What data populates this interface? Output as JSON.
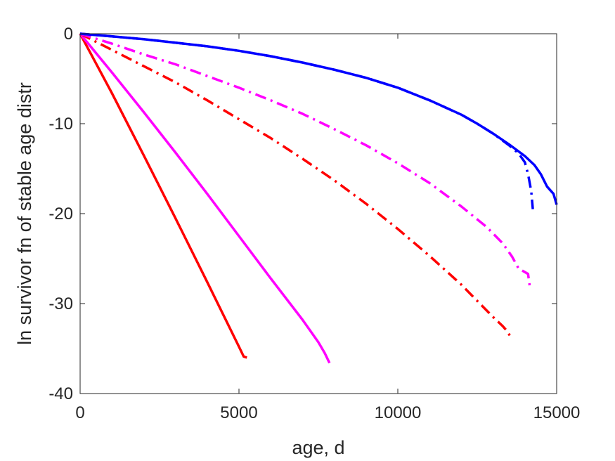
{
  "chart_data": {
    "type": "line",
    "title": "",
    "xlabel": "age, d",
    "ylabel": "ln survivor fn of stable age distr",
    "xlim": [
      0,
      15000
    ],
    "ylim": [
      -40,
      0
    ],
    "xticks": [
      0,
      5000,
      10000,
      15000
    ],
    "yticks": [
      0,
      -10,
      -20,
      -30,
      -40
    ],
    "xtick_labels": [
      "0",
      "5000",
      "10000",
      "15000"
    ],
    "ytick_labels": [
      "0",
      "-10",
      "-20",
      "-30",
      "-40"
    ],
    "grid": false,
    "box": true,
    "series": [
      {
        "color": "#ff0000",
        "style": "solid",
        "x": [
          0,
          1000,
          2000,
          3000,
          4000,
          5000,
          5150,
          5250
        ],
        "y": [
          0,
          -6.6,
          -13.5,
          -20.5,
          -27.6,
          -34.8,
          -35.9,
          -36.0
        ]
      },
      {
        "color": "#ff00ff",
        "style": "solid",
        "x": [
          0,
          1000,
          2000,
          3000,
          4000,
          5000,
          6000,
          7000,
          7500,
          7700,
          7850
        ],
        "y": [
          0,
          -4.3,
          -8.7,
          -13.2,
          -17.8,
          -22.5,
          -27.2,
          -31.8,
          -34.3,
          -35.5,
          -36.6
        ]
      },
      {
        "color": "#ff0000",
        "style": "dashdot",
        "x": [
          0,
          1000,
          2000,
          3000,
          4000,
          5000,
          6000,
          7000,
          8000,
          9000,
          10000,
          11000,
          12000,
          12500,
          13000,
          13300,
          13450,
          13550
        ],
        "y": [
          0,
          -1.8,
          -3.6,
          -5.4,
          -7.4,
          -9.5,
          -11.6,
          -13.9,
          -16.3,
          -18.9,
          -21.7,
          -24.7,
          -27.9,
          -29.7,
          -31.5,
          -32.5,
          -33.1,
          -33.7
        ]
      },
      {
        "color": "#ff00ff",
        "style": "dashdot",
        "x": [
          0,
          1000,
          2000,
          3000,
          4000,
          5000,
          6000,
          7000,
          8000,
          9000,
          10000,
          11000,
          12000,
          12800,
          13300,
          13600,
          13800,
          14000,
          14100,
          14150
        ],
        "y": [
          0,
          -1.1,
          -2.3,
          -3.4,
          -4.7,
          -6.0,
          -7.4,
          -8.9,
          -10.6,
          -12.4,
          -14.4,
          -16.6,
          -19.2,
          -21.5,
          -23.3,
          -24.8,
          -26.1,
          -26.5,
          -26.7,
          -28.0
        ]
      },
      {
        "color": "#0000ff",
        "style": "dashdot",
        "x": [
          0,
          1000,
          2000,
          3000,
          4000,
          5000,
          6000,
          7000,
          8000,
          9000,
          10000,
          11000,
          12000,
          12500,
          13000,
          13500,
          13800,
          14000,
          14100,
          14200,
          14250
        ],
        "y": [
          0,
          -0.3,
          -0.6,
          -1.0,
          -1.4,
          -1.9,
          -2.5,
          -3.2,
          -4.0,
          -4.9,
          -6.0,
          -7.4,
          -9.0,
          -10.0,
          -11.1,
          -12.4,
          -13.3,
          -14.3,
          -15.6,
          -17.5,
          -19.5
        ]
      },
      {
        "color": "#0000ff",
        "style": "solid",
        "x": [
          0,
          1000,
          2000,
          3000,
          4000,
          5000,
          6000,
          7000,
          8000,
          9000,
          10000,
          11000,
          12000,
          12500,
          13000,
          13500,
          14000,
          14300,
          14500,
          14700,
          14900,
          15000
        ],
        "y": [
          0,
          -0.3,
          -0.6,
          -1.0,
          -1.4,
          -1.9,
          -2.5,
          -3.2,
          -4.0,
          -4.9,
          -6.0,
          -7.4,
          -9.0,
          -10.0,
          -11.1,
          -12.3,
          -13.6,
          -14.6,
          -15.6,
          -17.0,
          -17.8,
          -19.0
        ]
      }
    ]
  }
}
